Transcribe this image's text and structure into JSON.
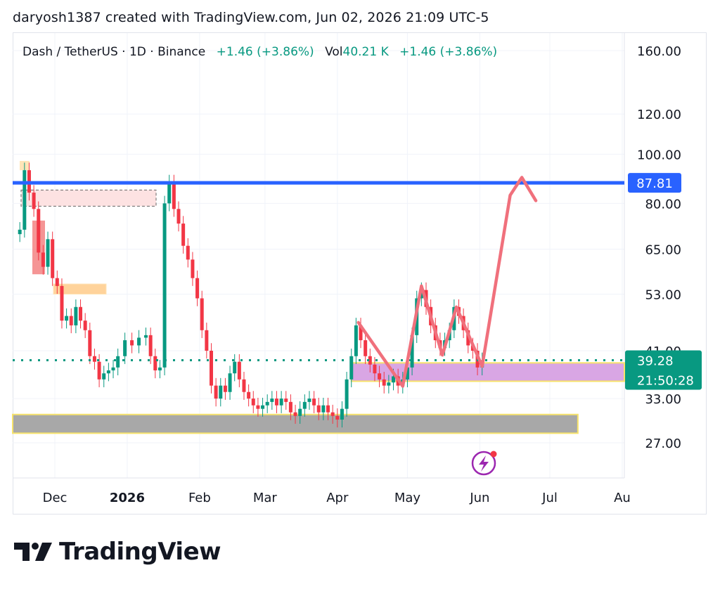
{
  "header": {
    "text": "daryosh1387 created with TradingView.com, Jun 02, 2026 21:09 UTC-5"
  },
  "legend": {
    "symbol": "Dash / TetherUS · 1D · Binance",
    "change": "+1.46 (+3.86%)",
    "vol_label": "Vol",
    "vol_value": "40.21 K",
    "vol_change": "+1.46 (+3.86%)"
  },
  "logo": {
    "text": "TradingView"
  },
  "colors": {
    "up": "#089981",
    "down": "#f23645",
    "resistance": "#2962ff",
    "path": "#f0707c",
    "support_zone": "#d9a6e4",
    "bottom_zone": "#a8a8a8",
    "zone_border": "#f7e36b"
  },
  "chart_data": {
    "type": "candlestick",
    "scale": "log",
    "y_ticks": [
      "160.00",
      "120.00",
      "100.00",
      "80.00",
      "65.00",
      "53.00",
      "41.00",
      "33.00",
      "27.00"
    ],
    "y_tick_values": [
      160,
      120,
      100,
      80,
      65,
      53,
      41,
      33,
      27
    ],
    "x_ticks": [
      "Dec",
      "2026",
      "Feb",
      "Mar",
      "Apr",
      "May",
      "Jun",
      "Jul",
      "Au"
    ],
    "x_tick_dates": [
      "2025-12-01",
      "2026-01-01",
      "2026-02-01",
      "2026-03-01",
      "2026-04-01",
      "2026-05-01",
      "2026-06-01",
      "2026-07-01",
      "2026-08-01"
    ],
    "resistance_level": 87.81,
    "resistance_label": "87.81",
    "last_price": 39.28,
    "last_price_label": "39.28",
    "countdown": "21:50:28",
    "support_zone": {
      "low": 35.7,
      "high": 38.8,
      "from": "2026-04-07"
    },
    "bottom_zone": {
      "low": 28.2,
      "high": 30.7,
      "to": "2026-07-13"
    },
    "projection_path": [
      {
        "date": "2026-04-10",
        "price": 46.6
      },
      {
        "date": "2026-04-29",
        "price": 34.9
      },
      {
        "date": "2026-05-07",
        "price": 55.0
      },
      {
        "date": "2026-05-16",
        "price": 40.2
      },
      {
        "date": "2026-05-22",
        "price": 50.0
      },
      {
        "date": "2026-06-02",
        "price": 38.2
      },
      {
        "date": "2026-06-14",
        "price": 83.0
      },
      {
        "date": "2026-06-19",
        "price": 90.0
      },
      {
        "date": "2026-06-25",
        "price": 81.0
      }
    ],
    "closes": [
      {
        "d": "2025-11-16",
        "c": 71
      },
      {
        "d": "2025-11-18",
        "c": 93
      },
      {
        "d": "2025-11-20",
        "c": 84
      },
      {
        "d": "2025-11-22",
        "c": 78
      },
      {
        "d": "2025-11-24",
        "c": 64
      },
      {
        "d": "2025-11-26",
        "c": 60
      },
      {
        "d": "2025-11-28",
        "c": 68
      },
      {
        "d": "2025-11-30",
        "c": 57
      },
      {
        "d": "2025-12-02",
        "c": 55
      },
      {
        "d": "2025-12-04",
        "c": 47
      },
      {
        "d": "2025-12-06",
        "c": 48
      },
      {
        "d": "2025-12-08",
        "c": 46
      },
      {
        "d": "2025-12-10",
        "c": 50
      },
      {
        "d": "2025-12-12",
        "c": 47
      },
      {
        "d": "2025-12-14",
        "c": 45
      },
      {
        "d": "2025-12-16",
        "c": 40
      },
      {
        "d": "2025-12-18",
        "c": 39
      },
      {
        "d": "2025-12-20",
        "c": 36
      },
      {
        "d": "2025-12-22",
        "c": 37
      },
      {
        "d": "2025-12-24",
        "c": 37.5
      },
      {
        "d": "2025-12-26",
        "c": 38
      },
      {
        "d": "2025-12-28",
        "c": 40
      },
      {
        "d": "2025-12-31",
        "c": 43
      },
      {
        "d": "2026-01-03",
        "c": 42
      },
      {
        "d": "2026-01-06",
        "c": 43.5
      },
      {
        "d": "2026-01-09",
        "c": 44
      },
      {
        "d": "2026-01-11",
        "c": 40
      },
      {
        "d": "2026-01-13",
        "c": 37.5
      },
      {
        "d": "2026-01-15",
        "c": 38
      },
      {
        "d": "2026-01-17",
        "c": 80
      },
      {
        "d": "2026-01-19",
        "c": 88
      },
      {
        "d": "2026-01-21",
        "c": 78
      },
      {
        "d": "2026-01-23",
        "c": 73
      },
      {
        "d": "2026-01-25",
        "c": 66
      },
      {
        "d": "2026-01-27",
        "c": 62
      },
      {
        "d": "2026-01-29",
        "c": 57
      },
      {
        "d": "2026-01-31",
        "c": 52
      },
      {
        "d": "2026-02-02",
        "c": 45
      },
      {
        "d": "2026-02-04",
        "c": 41
      },
      {
        "d": "2026-02-06",
        "c": 35
      },
      {
        "d": "2026-02-08",
        "c": 33
      },
      {
        "d": "2026-02-10",
        "c": 35
      },
      {
        "d": "2026-02-12",
        "c": 34
      },
      {
        "d": "2026-02-14",
        "c": 37
      },
      {
        "d": "2026-02-16",
        "c": 39
      },
      {
        "d": "2026-02-18",
        "c": 36
      },
      {
        "d": "2026-02-20",
        "c": 34
      },
      {
        "d": "2026-02-22",
        "c": 33
      },
      {
        "d": "2026-02-24",
        "c": 32
      },
      {
        "d": "2026-02-26",
        "c": 31.5
      },
      {
        "d": "2026-02-28",
        "c": 32
      },
      {
        "d": "2026-03-02",
        "c": 32.5
      },
      {
        "d": "2026-03-04",
        "c": 33
      },
      {
        "d": "2026-03-06",
        "c": 32
      },
      {
        "d": "2026-03-08",
        "c": 33
      },
      {
        "d": "2026-03-10",
        "c": 32.5
      },
      {
        "d": "2026-03-12",
        "c": 31
      },
      {
        "d": "2026-03-14",
        "c": 30.5
      },
      {
        "d": "2026-03-16",
        "c": 31.5
      },
      {
        "d": "2026-03-18",
        "c": 32.5
      },
      {
        "d": "2026-03-20",
        "c": 33
      },
      {
        "d": "2026-03-22",
        "c": 32
      },
      {
        "d": "2026-03-24",
        "c": 31
      },
      {
        "d": "2026-03-26",
        "c": 32
      },
      {
        "d": "2026-03-28",
        "c": 31
      },
      {
        "d": "2026-03-30",
        "c": 30.5
      },
      {
        "d": "2026-04-01",
        "c": 30
      },
      {
        "d": "2026-04-03",
        "c": 31.5
      },
      {
        "d": "2026-04-05",
        "c": 36
      },
      {
        "d": "2026-04-07",
        "c": 40
      },
      {
        "d": "2026-04-09",
        "c": 46
      },
      {
        "d": "2026-04-11",
        "c": 43
      },
      {
        "d": "2026-04-13",
        "c": 40
      },
      {
        "d": "2026-04-15",
        "c": 38.5
      },
      {
        "d": "2026-04-17",
        "c": 37
      },
      {
        "d": "2026-04-19",
        "c": 36
      },
      {
        "d": "2026-04-21",
        "c": 35
      },
      {
        "d": "2026-04-23",
        "c": 35.5
      },
      {
        "d": "2026-04-25",
        "c": 36.5
      },
      {
        "d": "2026-04-27",
        "c": 35
      },
      {
        "d": "2026-04-29",
        "c": 36
      },
      {
        "d": "2026-05-01",
        "c": 38
      },
      {
        "d": "2026-05-03",
        "c": 44
      },
      {
        "d": "2026-05-05",
        "c": 52
      },
      {
        "d": "2026-05-07",
        "c": 54
      },
      {
        "d": "2026-05-09",
        "c": 50
      },
      {
        "d": "2026-05-11",
        "c": 46
      },
      {
        "d": "2026-05-13",
        "c": 43
      },
      {
        "d": "2026-05-15",
        "c": 41.5
      },
      {
        "d": "2026-05-17",
        "c": 43
      },
      {
        "d": "2026-05-19",
        "c": 45
      },
      {
        "d": "2026-05-21",
        "c": 50
      },
      {
        "d": "2026-05-23",
        "c": 48
      },
      {
        "d": "2026-05-25",
        "c": 45
      },
      {
        "d": "2026-05-27",
        "c": 42
      },
      {
        "d": "2026-05-29",
        "c": 41
      },
      {
        "d": "2026-05-31",
        "c": 38
      },
      {
        "d": "2026-06-02",
        "c": 39.28
      }
    ]
  }
}
